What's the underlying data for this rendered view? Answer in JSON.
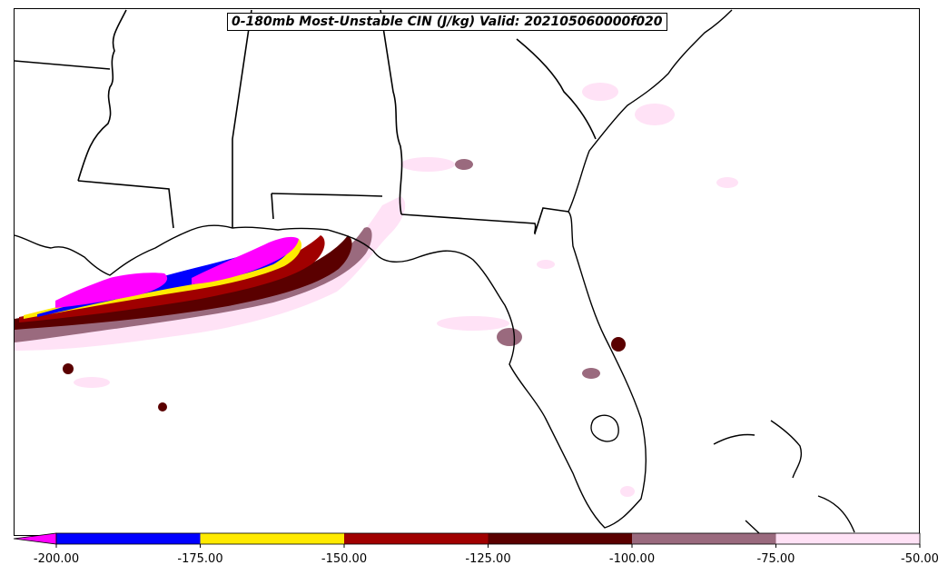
{
  "title": "0-180mb Most-Unstable CIN (J/kg) Valid: 202105060000f020",
  "colorbar": {
    "bins": [
      {
        "from": -200,
        "to": -175,
        "color": "#0000ff"
      },
      {
        "from": -175,
        "to": -150,
        "color": "#ffea00"
      },
      {
        "from": -150,
        "to": -125,
        "color": "#a00000"
      },
      {
        "from": -125,
        "to": -100,
        "color": "#5a0000"
      },
      {
        "from": -100,
        "to": -75,
        "color": "#9a6a7e"
      },
      {
        "from": -75,
        "to": -50,
        "color": "#ffe2f6"
      }
    ],
    "under_color": "#ff00ff",
    "tick_labels": [
      "-200.00",
      "-175.00",
      "-150.00",
      "-125.00",
      "-100.00",
      "-75.00",
      "-50.00"
    ]
  },
  "map": {
    "region": "Southeastern United States and Gulf of Mexico",
    "features": [
      "state-borders",
      "coastlines",
      "cin-shading"
    ]
  }
}
